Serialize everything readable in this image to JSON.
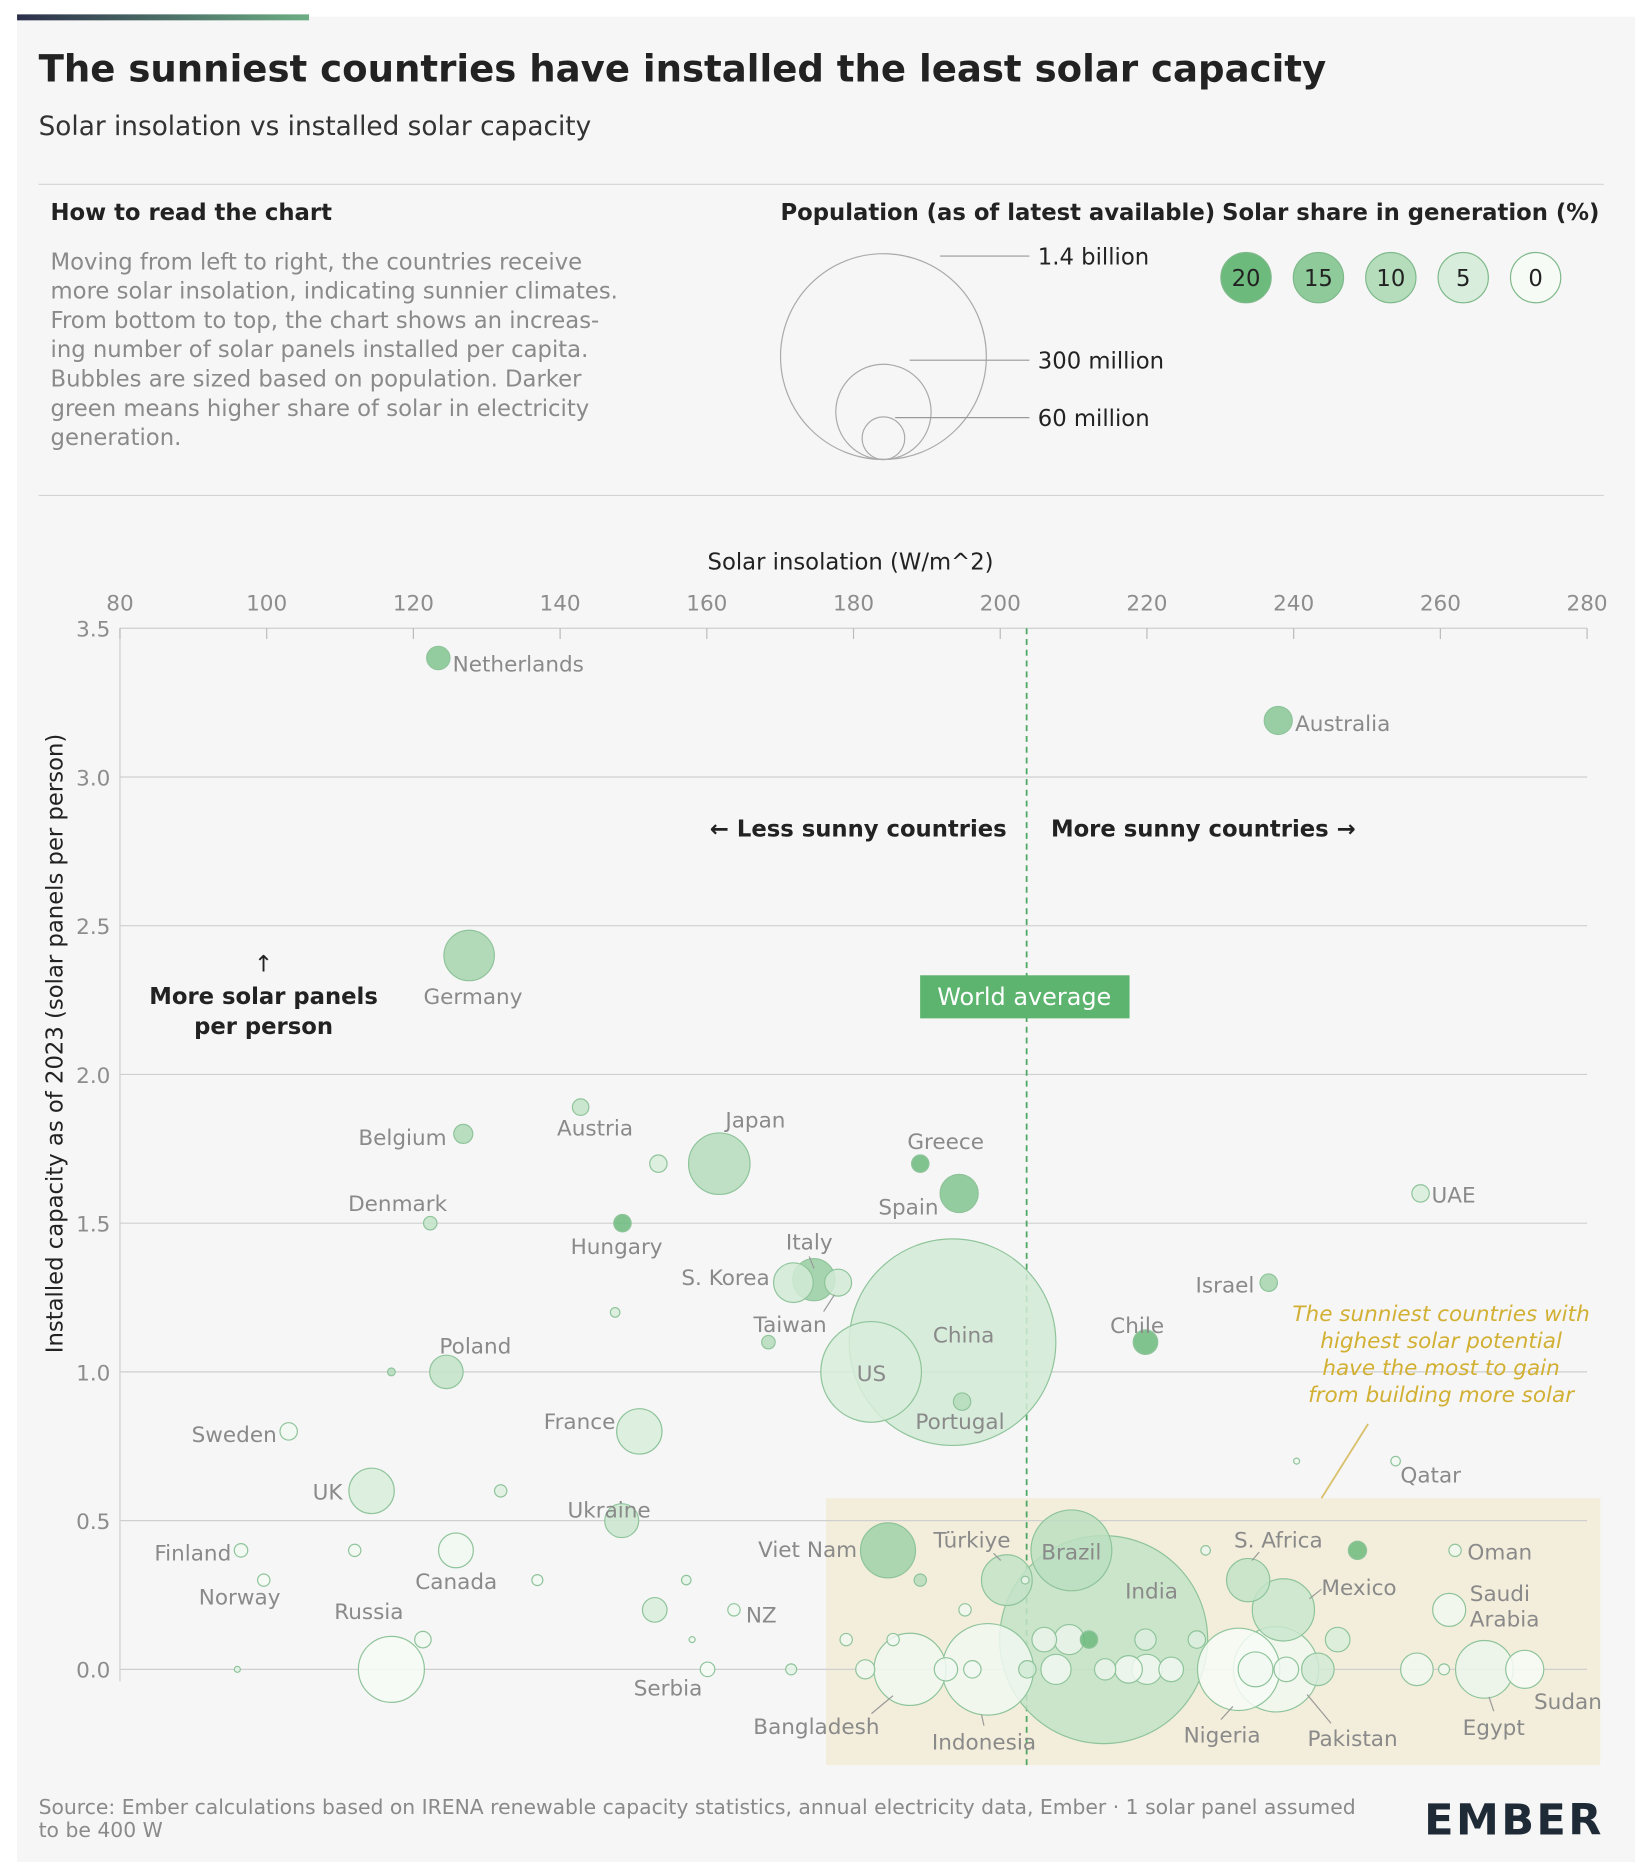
{
  "chart_data": {
    "type": "bubble",
    "title": "The sunniest countries have installed the least solar capacity",
    "subtitle": "Solar insolation vs installed solar capacity",
    "how_to_read": {
      "heading": "How to read the chart",
      "lines": [
        "Moving from left to right, the countries receive",
        "more solar insolation, indicating sunnier climates.",
        "From bottom to top, the chart shows an increas-",
        "ing number of solar panels installed per capita.",
        "Bubbles are sized based on population. Darker",
        "green means higher share of solar in electricity",
        "generation."
      ]
    },
    "size_legend": {
      "title": "Population (as of latest available)",
      "entries": [
        {
          "value": 1400,
          "label": "1.4 billion"
        },
        {
          "value": 300,
          "label": "300 million"
        },
        {
          "value": 60,
          "label": "60 million"
        }
      ]
    },
    "color_legend": {
      "title": "Solar share in generation (%)",
      "entries": [
        {
          "value": 20,
          "color": "#6cba7c"
        },
        {
          "value": 15,
          "color": "#8fca9b"
        },
        {
          "value": 10,
          "color": "#b5dcbb"
        },
        {
          "value": 5,
          "color": "#d8eddb"
        },
        {
          "value": 0,
          "color": "#f7fbf6"
        }
      ]
    },
    "x_label": "Solar insolation (W/m^2)",
    "y_label": "Installed capacity as of 2023 (solar panels per person)",
    "xlim": [
      80,
      280
    ],
    "xticks": [
      80,
      100,
      120,
      140,
      160,
      180,
      200,
      220,
      240,
      260,
      280
    ],
    "ylim": [
      0,
      3.5
    ],
    "yticks": [
      {
        "value": 0,
        "label": "0.0"
      },
      0.5,
      {
        "value": 1,
        "label": "1.0"
      },
      1.5,
      {
        "value": 2,
        "label": "2.0"
      },
      2.5,
      {
        "value": 3,
        "label": "3.0"
      },
      3.5
    ],
    "grid": true,
    "world_average": {
      "x": 203.6,
      "label": "World average"
    },
    "annotations": {
      "less_sunny": "← Less sunny countries",
      "more_sunny": "More sunny countries →",
      "up_arrow": "↑",
      "more_panels": [
        "More solar panels",
        "per person"
      ],
      "note": [
        "The sunniest countries with",
        "highest solar potential",
        "have the most to gain",
        "from building more solar"
      ]
    },
    "points": [
      {
        "label": "Netherlands",
        "x": 123.4,
        "y": 3.4,
        "population": 18,
        "solar_share": 17
      },
      {
        "label": "Australia",
        "x": 237.9,
        "y": 3.19,
        "population": 26,
        "solar_share": 16
      },
      {
        "label": "Germany",
        "x": 127.6,
        "y": 2.4,
        "population": 84,
        "solar_share": 12
      },
      {
        "label": "Belgium",
        "x": 126.8,
        "y": 1.8,
        "population": 12,
        "solar_share": 11
      },
      {
        "label": "Austria",
        "x": 142.8,
        "y": 1.89,
        "population": 9,
        "solar_share": 8
      },
      {
        "label": "Japan",
        "x": 161.7,
        "y": 1.7,
        "population": 125,
        "solar_share": 10
      },
      {
        "label": "Greece",
        "x": 189.1,
        "y": 1.7,
        "population": 10,
        "solar_share": 20
      },
      {
        "label": "Spain",
        "x": 194.4,
        "y": 1.6,
        "population": 48,
        "solar_share": 17
      },
      {
        "label": "UAE",
        "x": 257.3,
        "y": 1.6,
        "population": 10,
        "solar_share": 5
      },
      {
        "label": null,
        "x": 153.4,
        "y": 1.7,
        "population": 10,
        "solar_share": 5
      },
      {
        "label": "Denmark",
        "x": 122.3,
        "y": 1.5,
        "population": 6,
        "solar_share": 8
      },
      {
        "label": "Hungary",
        "x": 148.5,
        "y": 1.5,
        "population": 10,
        "solar_share": 20
      },
      {
        "label": "S. Korea",
        "x": 171.8,
        "y": 1.3,
        "population": 52,
        "solar_share": 6
      },
      {
        "label": "Italy",
        "x": 174.6,
        "y": 1.31,
        "population": 59,
        "solar_share": 14
      },
      {
        "label": "Taiwan",
        "x": 177.9,
        "y": 1.3,
        "population": 24,
        "solar_share": 6
      },
      {
        "label": "Israel",
        "x": 236.6,
        "y": 1.3,
        "population": 10,
        "solar_share": 12
      },
      {
        "label": "China",
        "x": 193.5,
        "y": 1.1,
        "population": 1410,
        "solar_share": 6
      },
      {
        "label": "Chile",
        "x": 219.8,
        "y": 1.1,
        "population": 20,
        "solar_share": 20
      },
      {
        "label": null,
        "x": 147.5,
        "y": 1.2,
        "population": 3,
        "solar_share": 5
      },
      {
        "label": null,
        "x": 168.4,
        "y": 1.1,
        "population": 6,
        "solar_share": 10
      },
      {
        "label": "US",
        "x": 182.4,
        "y": 1,
        "population": 335,
        "solar_share": 5
      },
      {
        "label": "Poland",
        "x": 124.5,
        "y": 1,
        "population": 37,
        "solar_share": 8
      },
      {
        "label": null,
        "x": 117,
        "y": 1,
        "population": 2,
        "solar_share": 10
      },
      {
        "label": "Portugal",
        "x": 194.8,
        "y": 0.9,
        "population": 10,
        "solar_share": 10
      },
      {
        "label": "Sweden",
        "x": 103,
        "y": 0.8,
        "population": 10,
        "solar_share": 1
      },
      {
        "label": "France",
        "x": 150.8,
        "y": 0.8,
        "population": 68,
        "solar_share": 5
      },
      {
        "label": "UK",
        "x": 114.3,
        "y": 0.6,
        "population": 68,
        "solar_share": 5
      },
      {
        "label": null,
        "x": 131.9,
        "y": 0.6,
        "population": 5,
        "solar_share": 4
      },
      {
        "label": null,
        "x": 240.4,
        "y": 0.7,
        "population": 1,
        "solar_share": 1
      },
      {
        "label": "Qatar",
        "x": 253.9,
        "y": 0.7,
        "population": 3,
        "solar_share": 1
      },
      {
        "label": "Ukraine",
        "x": 148.4,
        "y": 0.5,
        "population": 38,
        "solar_share": 7
      },
      {
        "label": "Finland",
        "x": 96.5,
        "y": 0.4,
        "population": 6,
        "solar_share": 1
      },
      {
        "label": null,
        "x": 112,
        "y": 0.4,
        "population": 5,
        "solar_share": 1
      },
      {
        "label": "Canada",
        "x": 125.8,
        "y": 0.4,
        "population": 40,
        "solar_share": 1
      },
      {
        "label": "Viet Nam",
        "x": 184.7,
        "y": 0.4,
        "population": 100,
        "solar_share": 13
      },
      {
        "label": "Brazil",
        "x": 209.7,
        "y": 0.4,
        "population": 216,
        "solar_share": 9
      },
      {
        "label": null,
        "x": 228,
        "y": 0.4,
        "population": 3,
        "solar_share": 2
      },
      {
        "label": "S. Africa",
        "x": 233.8,
        "y": 0.3,
        "population": 62,
        "solar_share": 8
      },
      {
        "label": "Mexico",
        "x": 238.6,
        "y": 0.2,
        "population": 128,
        "solar_share": 7
      },
      {
        "label": null,
        "x": 248.7,
        "y": 0.4,
        "population": 11,
        "solar_share": 20
      },
      {
        "label": "Oman",
        "x": 262,
        "y": 0.4,
        "population": 5,
        "solar_share": 1
      },
      {
        "label": "Norway",
        "x": 99.6,
        "y": 0.3,
        "population": 5,
        "solar_share": 0
      },
      {
        "label": null,
        "x": 136.9,
        "y": 0.3,
        "population": 4,
        "solar_share": 1
      },
      {
        "label": null,
        "x": 157.2,
        "y": 0.3,
        "population": 3,
        "solar_share": 3
      },
      {
        "label": null,
        "x": 189.1,
        "y": 0.3,
        "population": 5,
        "solar_share": 10
      },
      {
        "label": "Türkiye",
        "x": 200.9,
        "y": 0.3,
        "population": 85,
        "solar_share": 8
      },
      {
        "label": null,
        "x": 203.4,
        "y": 0.3,
        "population": 2,
        "solar_share": 2
      },
      {
        "label": "India",
        "x": 214.1,
        "y": 0.1,
        "population": 1430,
        "solar_share": 8
      },
      {
        "label": "Saudi Arabia",
        "x": 261.2,
        "y": 0.2,
        "population": 36,
        "solar_share": 1
      },
      {
        "label": "NZ",
        "x": 163.7,
        "y": 0.2,
        "population": 5,
        "solar_share": 1
      },
      {
        "label": null,
        "x": 152.9,
        "y": 0.2,
        "population": 20,
        "solar_share": 5
      },
      {
        "label": "Russia",
        "x": 117,
        "y": 0,
        "population": 144,
        "solar_share": 0
      },
      {
        "label": null,
        "x": 121.3,
        "y": 0.1,
        "population": 9,
        "solar_share": 1
      },
      {
        "label": null,
        "x": 96,
        "y": 0,
        "population": 0.5,
        "solar_share": 3
      },
      {
        "label": null,
        "x": 158,
        "y": 0.1,
        "population": 1,
        "solar_share": 1
      },
      {
        "label": "Serbia",
        "x": 160.1,
        "y": 0,
        "population": 7,
        "solar_share": 0
      },
      {
        "label": null,
        "x": 171.5,
        "y": 0,
        "population": 4,
        "solar_share": 3
      },
      {
        "label": "Bangladesh",
        "x": 187.7,
        "y": 0,
        "population": 172,
        "solar_share": 1
      },
      {
        "label": "Indonesia",
        "x": 198.3,
        "y": 0,
        "population": 277,
        "solar_share": 1
      },
      {
        "label": "Nigeria",
        "x": 232.5,
        "y": 0,
        "population": 224,
        "solar_share": 0
      },
      {
        "label": "Pakistan",
        "x": 237.6,
        "y": 0,
        "population": 240,
        "solar_share": 1
      },
      {
        "label": "Egypt",
        "x": 266,
        "y": 0,
        "population": 110,
        "solar_share": 2
      },
      {
        "label": "Sudan",
        "x": 271.5,
        "y": 0,
        "population": 48,
        "solar_share": 0
      },
      {
        "label": null,
        "x": 179,
        "y": 0.1,
        "population": 5,
        "solar_share": 1
      },
      {
        "label": null,
        "x": 181.6,
        "y": 0,
        "population": 12,
        "solar_share": 1
      },
      {
        "label": null,
        "x": 185.4,
        "y": 0.1,
        "population": 5,
        "solar_share": 1
      },
      {
        "label": null,
        "x": 192.6,
        "y": 0,
        "population": 18,
        "solar_share": 1
      },
      {
        "label": null,
        "x": 196.2,
        "y": 0,
        "population": 10,
        "solar_share": 1
      },
      {
        "label": null,
        "x": 195.2,
        "y": 0.2,
        "population": 5,
        "solar_share": 1
      },
      {
        "label": null,
        "x": 203.7,
        "y": 0,
        "population": 10,
        "solar_share": 6
      },
      {
        "label": null,
        "x": 206,
        "y": 0.1,
        "population": 20,
        "solar_share": 2
      },
      {
        "label": null,
        "x": 207.6,
        "y": 0,
        "population": 30,
        "solar_share": 1
      },
      {
        "label": null,
        "x": 209.4,
        "y": 0.1,
        "population": 30,
        "solar_share": 2
      },
      {
        "label": null,
        "x": 212.1,
        "y": 0.1,
        "population": 10,
        "solar_share": 20
      },
      {
        "label": null,
        "x": 219.8,
        "y": 0.1,
        "population": 15,
        "solar_share": 4
      },
      {
        "label": null,
        "x": 214.3,
        "y": 0,
        "population": 15,
        "solar_share": 2
      },
      {
        "label": null,
        "x": 217.5,
        "y": 0,
        "population": 25,
        "solar_share": 1
      },
      {
        "label": null,
        "x": 220,
        "y": 0,
        "population": 30,
        "solar_share": 1
      },
      {
        "label": null,
        "x": 223.3,
        "y": 0,
        "population": 20,
        "solar_share": 1
      },
      {
        "label": null,
        "x": 226.8,
        "y": 0.1,
        "population": 10,
        "solar_share": 4
      },
      {
        "label": null,
        "x": 234.8,
        "y": 0,
        "population": 40,
        "solar_share": 1
      },
      {
        "label": null,
        "x": 239,
        "y": 0,
        "population": 20,
        "solar_share": 1
      },
      {
        "label": null,
        "x": 243.3,
        "y": 0,
        "population": 35,
        "solar_share": 6
      },
      {
        "label": null,
        "x": 246,
        "y": 0.1,
        "population": 20,
        "solar_share": 5
      },
      {
        "label": null,
        "x": 256.8,
        "y": 0,
        "population": 35,
        "solar_share": 1
      },
      {
        "label": null,
        "x": 260.5,
        "y": 0,
        "population": 4,
        "solar_share": 1
      }
    ],
    "source": [
      "Source: Ember calculations based on IRENA renewable capacity statistics, annual electricity data, Ember · 1 solar panel assumed",
      "to be 400 W"
    ],
    "logo": "EMBER"
  }
}
